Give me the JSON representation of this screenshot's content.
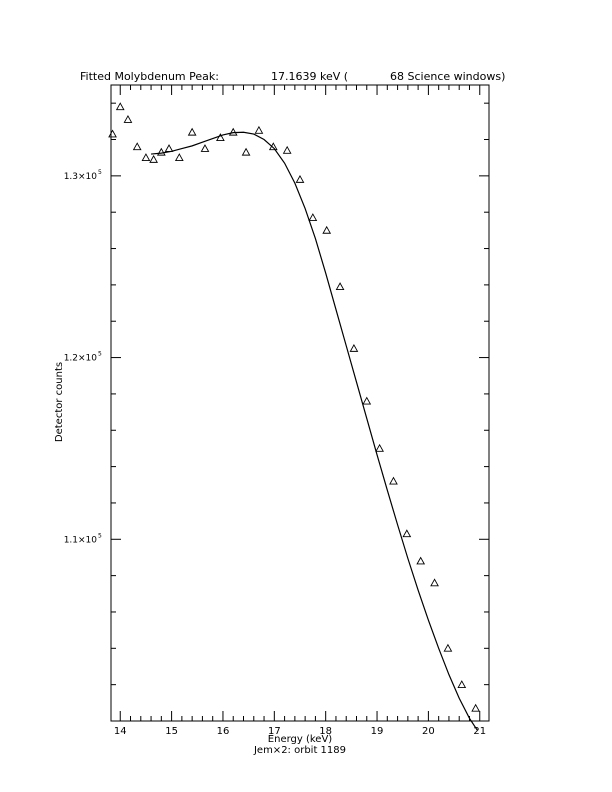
{
  "chart_data": {
    "type": "scatter",
    "title_parts": [
      "Fitted Molybdenum Peak:",
      "17.1639 keV (",
      "68 Science windows)"
    ],
    "xlabel": "Energy (keV)",
    "ylabel": "Detector counts",
    "footer": "Jem×2: orbit 1189",
    "xlim": [
      13.82,
      21.18
    ],
    "ylim": [
      100000,
      135000
    ],
    "x_ticks": [
      14,
      15,
      16,
      17,
      18,
      19,
      20,
      21
    ],
    "x_tick_labels": [
      "14",
      "15",
      "16",
      "17",
      "18",
      "19",
      "20",
      "21"
    ],
    "y_ticks": [
      110000,
      120000,
      130000
    ],
    "y_tick_labels": [
      {
        "mantissa": "1.1×10",
        "exp": "5"
      },
      {
        "mantissa": "1.2×10",
        "exp": "5"
      },
      {
        "mantissa": "1.3×10",
        "exp": "5"
      }
    ],
    "grid": false,
    "series": [
      {
        "marker": "triangle",
        "x": [
          13.85,
          14.0,
          14.15,
          14.33,
          14.5,
          14.65,
          14.8,
          14.95,
          15.15,
          15.4,
          15.65,
          15.95,
          16.2,
          16.45,
          16.7,
          16.98,
          17.25,
          17.5,
          17.75,
          18.02,
          18.28,
          18.55,
          18.8,
          19.05,
          19.32,
          19.58,
          19.85,
          20.12,
          20.38,
          20.65,
          20.92
        ],
        "y": [
          132300,
          133800,
          133100,
          131600,
          131000,
          130900,
          131300,
          131500,
          131000,
          132400,
          131500,
          132100,
          132400,
          131300,
          132500,
          131600,
          131400,
          129800,
          127700,
          127000,
          123900,
          120500,
          117600,
          115000,
          113200,
          110300,
          108800,
          107600,
          104000,
          102000,
          100700
        ]
      },
      {
        "marker": "line",
        "x": [
          14.6,
          14.8,
          15.0,
          15.2,
          15.4,
          15.6,
          15.8,
          16.0,
          16.2,
          16.4,
          16.6,
          16.8,
          17.0,
          17.2,
          17.4,
          17.6,
          17.8,
          18.0,
          18.2,
          18.4,
          18.6,
          18.8,
          19.0,
          19.2,
          19.4,
          19.6,
          19.8,
          20.0,
          20.2,
          20.4,
          20.6,
          20.8,
          20.95
        ],
        "y": [
          131200,
          131250,
          131350,
          131500,
          131650,
          131850,
          132050,
          132250,
          132380,
          132400,
          132300,
          132000,
          131500,
          130700,
          129600,
          128200,
          126550,
          124650,
          122650,
          120650,
          118650,
          116650,
          114650,
          112700,
          110800,
          108950,
          107200,
          105550,
          104000,
          102550,
          101250,
          100150,
          99500
        ]
      }
    ]
  }
}
